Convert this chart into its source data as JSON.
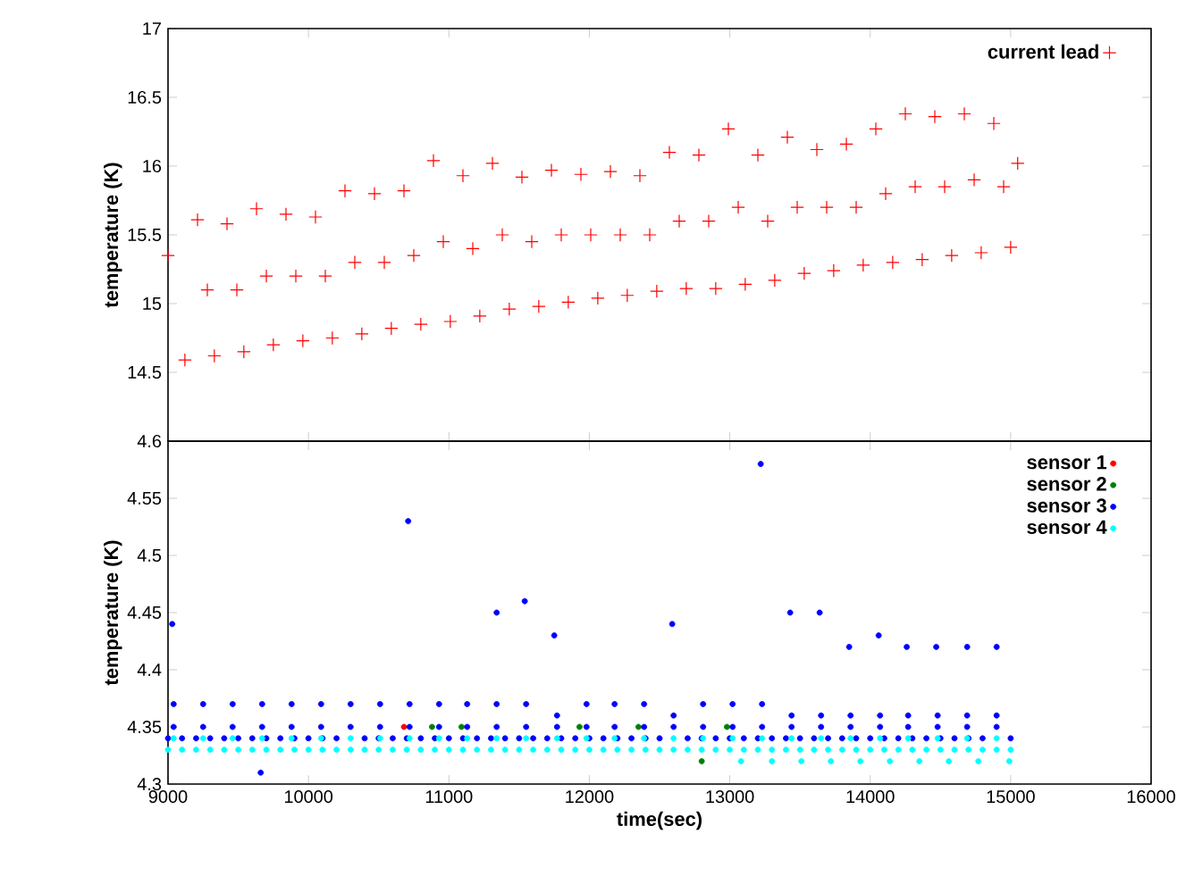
{
  "chart_data": [
    {
      "type": "scatter",
      "ylabel": "temperature (K)",
      "xlim": [
        9000,
        16000
      ],
      "xticks": [
        9000,
        10000,
        11000,
        12000,
        13000,
        14000,
        15000,
        16000
      ],
      "ylim": [
        14,
        17
      ],
      "yticks": [
        14.5,
        15,
        15.5,
        16,
        16.5,
        17
      ],
      "tick_labels": "y",
      "legend": "top right",
      "marker": "cross",
      "series": [
        {
          "name": "current lead",
          "color": "#ff0000",
          "x": [
            9000,
            9120,
            9210,
            9280,
            9330,
            9420,
            9490,
            9540,
            9630,
            9700,
            9750,
            9840,
            9910,
            9960,
            10050,
            10120,
            10170,
            10260,
            10330,
            10380,
            10470,
            10540,
            10590,
            10680,
            10750,
            10800,
            10890,
            10960,
            11010,
            11100,
            11170,
            11220,
            11310,
            11380,
            11430,
            11520,
            11590,
            11640,
            11730,
            11800,
            11850,
            11940,
            12010,
            12060,
            12150,
            12220,
            12270,
            12360,
            12430,
            12480,
            12570,
            12640,
            12690,
            12780,
            12850,
            12900,
            12990,
            13060,
            13110,
            13200,
            13270,
            13320,
            13410,
            13480,
            13530,
            13620,
            13690,
            13740,
            13830,
            13900,
            13950,
            14040,
            14110,
            14160,
            14250,
            14320,
            14370,
            14460,
            14530,
            14580,
            14670,
            14740,
            14790,
            14880,
            14950,
            15000,
            15050
          ],
          "values": [
            15.35,
            14.59,
            15.61,
            15.1,
            14.62,
            15.58,
            15.1,
            14.65,
            15.69,
            15.2,
            14.7,
            15.65,
            15.2,
            14.73,
            15.63,
            15.2,
            14.75,
            15.82,
            15.3,
            14.78,
            15.8,
            15.3,
            14.82,
            15.82,
            15.35,
            14.85,
            16.04,
            15.45,
            14.87,
            15.93,
            15.4,
            14.91,
            16.02,
            15.5,
            14.96,
            15.92,
            15.45,
            14.98,
            15.97,
            15.5,
            15.01,
            15.94,
            15.5,
            15.04,
            15.96,
            15.5,
            15.06,
            15.93,
            15.5,
            15.09,
            16.1,
            15.6,
            15.11,
            16.08,
            15.6,
            15.11,
            16.27,
            15.7,
            15.14,
            16.08,
            15.6,
            15.17,
            16.21,
            15.7,
            15.22,
            16.12,
            15.7,
            15.24,
            16.16,
            15.7,
            15.28,
            16.27,
            15.8,
            15.3,
            16.38,
            15.85,
            15.32,
            16.36,
            15.85,
            15.35,
            16.38,
            15.9,
            15.37,
            16.31,
            15.85,
            15.41,
            16.02
          ]
        }
      ]
    },
    {
      "type": "scatter",
      "xlabel": "time(sec)",
      "ylabel": "temperature (K)",
      "xlim": [
        9000,
        16000
      ],
      "xticks": [
        9000,
        10000,
        11000,
        12000,
        13000,
        14000,
        15000,
        16000
      ],
      "ylim": [
        4.3,
        4.6
      ],
      "yticks": [
        4.3,
        4.35,
        4.4,
        4.45,
        4.5,
        4.55,
        4.6
      ],
      "legend": "top right",
      "marker": "circle",
      "series": [
        {
          "name": "sensor 1",
          "color": "#ff0000",
          "x": [
            10680
          ],
          "values": [
            4.35
          ]
        },
        {
          "name": "sensor 2",
          "color": "#008000",
          "x": [
            10880,
            11090,
            11930,
            12350,
            12800,
            12980
          ],
          "values": [
            4.35,
            4.35,
            4.35,
            4.35,
            4.32,
            4.35
          ]
        },
        {
          "name": "sensor 3",
          "color": "#0000ff",
          "x": [
            9000,
            9100,
            9200,
            9300,
            9400,
            9500,
            9600,
            9700,
            9800,
            9900,
            10000,
            10100,
            10200,
            10300,
            10400,
            10500,
            10600,
            10700,
            10800,
            10900,
            11000,
            11100,
            11200,
            11300,
            11400,
            11500,
            11600,
            11700,
            11800,
            11900,
            12000,
            12100,
            12200,
            12300,
            12400,
            12500,
            12600,
            12700,
            12800,
            12900,
            13000,
            13100,
            13200,
            13300,
            13400,
            13500,
            13600,
            13700,
            13800,
            13900,
            14000,
            14100,
            14200,
            14300,
            14400,
            14500,
            14600,
            14700,
            14800,
            14900,
            15000,
            9040,
            9250,
            9460,
            9670,
            9880,
            10090,
            10300,
            10510,
            10720,
            10930,
            11130,
            11340,
            11550,
            11770,
            11980,
            12180,
            12390,
            12600,
            12810,
            13020,
            13230,
            13440,
            13650,
            13860,
            14070,
            14270,
            14480,
            14690,
            14900,
            9040,
            9250,
            9460,
            9670,
            9880,
            10090,
            10300,
            10510,
            10720,
            10930,
            11130,
            11340,
            11550,
            11770,
            11980,
            12180,
            12390,
            12600,
            12810,
            13020,
            13230,
            13440,
            13650,
            13860,
            14070,
            14270,
            14480,
            14690,
            14900,
            9030,
            10710,
            11340,
            11540,
            11750,
            12590,
            9660,
            13220,
            13430,
            13640,
            13850,
            14060,
            14260,
            14470,
            14690,
            14900
          ],
          "values": [
            4.34,
            4.34,
            4.34,
            4.34,
            4.34,
            4.34,
            4.34,
            4.34,
            4.34,
            4.34,
            4.34,
            4.34,
            4.34,
            null,
            4.34,
            4.34,
            4.34,
            4.34,
            4.34,
            4.34,
            4.34,
            4.34,
            4.34,
            4.34,
            4.34,
            4.34,
            4.34,
            4.34,
            4.34,
            4.34,
            4.34,
            4.34,
            4.34,
            4.34,
            4.34,
            4.34,
            null,
            4.34,
            4.34,
            4.34,
            4.34,
            4.34,
            4.34,
            4.34,
            4.34,
            4.34,
            4.34,
            4.34,
            4.34,
            4.34,
            4.34,
            4.34,
            4.34,
            4.34,
            4.34,
            4.34,
            4.34,
            4.34,
            4.34,
            null,
            4.34,
            4.35,
            4.35,
            4.35,
            4.35,
            4.35,
            4.35,
            4.35,
            4.35,
            4.35,
            4.35,
            4.35,
            4.35,
            4.35,
            4.35,
            4.35,
            4.35,
            4.35,
            4.35,
            4.35,
            4.35,
            4.35,
            4.35,
            4.35,
            4.35,
            4.35,
            4.35,
            4.35,
            4.35,
            4.35,
            4.37,
            4.37,
            4.37,
            4.37,
            4.37,
            4.37,
            4.37,
            4.37,
            4.37,
            4.37,
            4.37,
            4.37,
            4.37,
            4.36,
            4.37,
            4.37,
            4.37,
            4.36,
            4.37,
            4.37,
            4.37,
            4.36,
            4.36,
            4.36,
            4.36,
            4.36,
            4.36,
            4.36,
            4.36,
            4.44,
            4.53,
            4.45,
            4.46,
            4.43,
            4.44,
            4.31,
            4.58,
            4.45,
            4.45,
            4.42,
            4.43,
            4.42,
            4.42,
            4.42,
            4.42
          ]
        },
        {
          "name": "sensor 4",
          "color": "#00ffff",
          "x": [
            9000,
            9100,
            9200,
            9300,
            9400,
            9500,
            9600,
            9700,
            9800,
            9900,
            10000,
            10100,
            10200,
            10300,
            10400,
            10500,
            10600,
            10700,
            10800,
            10900,
            11000,
            11100,
            11200,
            11300,
            11400,
            11500,
            11600,
            11700,
            11800,
            11900,
            12000,
            12100,
            12200,
            12300,
            12400,
            12500,
            12600,
            12700,
            12800,
            12900,
            13000,
            13100,
            13200,
            13300,
            13400,
            13500,
            13600,
            13700,
            13800,
            13900,
            14000,
            14100,
            14200,
            14300,
            14400,
            14500,
            14600,
            14700,
            14800,
            14900,
            15000,
            9040,
            9250,
            9460,
            9670,
            9880,
            10090,
            10300,
            10510,
            10720,
            10930,
            11130,
            11340,
            11550,
            11770,
            11980,
            12180,
            12390,
            12600,
            12810,
            13020,
            13230,
            13440,
            13650,
            13860,
            14070,
            14270,
            14480,
            14690,
            14900,
            13080,
            13300,
            13510,
            13720,
            13930,
            14140,
            14350,
            14560,
            14770,
            14990
          ],
          "values": [
            4.33,
            4.33,
            4.33,
            4.33,
            4.33,
            4.33,
            4.33,
            4.33,
            4.33,
            4.33,
            4.33,
            4.33,
            4.33,
            4.33,
            4.33,
            4.33,
            4.33,
            4.33,
            4.33,
            4.33,
            4.33,
            4.33,
            4.33,
            4.33,
            4.33,
            4.33,
            4.33,
            4.33,
            4.33,
            4.33,
            4.33,
            4.33,
            4.33,
            4.33,
            4.33,
            4.33,
            4.33,
            4.33,
            4.33,
            4.33,
            4.33,
            4.33,
            4.33,
            4.33,
            4.33,
            4.33,
            4.33,
            4.33,
            4.33,
            4.33,
            4.33,
            4.33,
            4.33,
            4.33,
            4.33,
            4.33,
            4.33,
            4.33,
            4.33,
            4.33,
            4.33,
            4.34,
            4.34,
            4.34,
            4.34,
            4.34,
            4.34,
            4.34,
            4.34,
            4.34,
            4.34,
            4.34,
            4.34,
            4.34,
            4.34,
            4.34,
            4.34,
            4.34,
            4.34,
            4.34,
            4.34,
            4.34,
            4.34,
            4.34,
            4.34,
            4.34,
            4.34,
            4.34,
            4.34,
            4.34,
            4.32,
            4.32,
            4.32,
            4.32,
            4.32,
            4.32,
            4.32,
            4.32,
            4.32,
            4.32
          ]
        }
      ]
    }
  ]
}
